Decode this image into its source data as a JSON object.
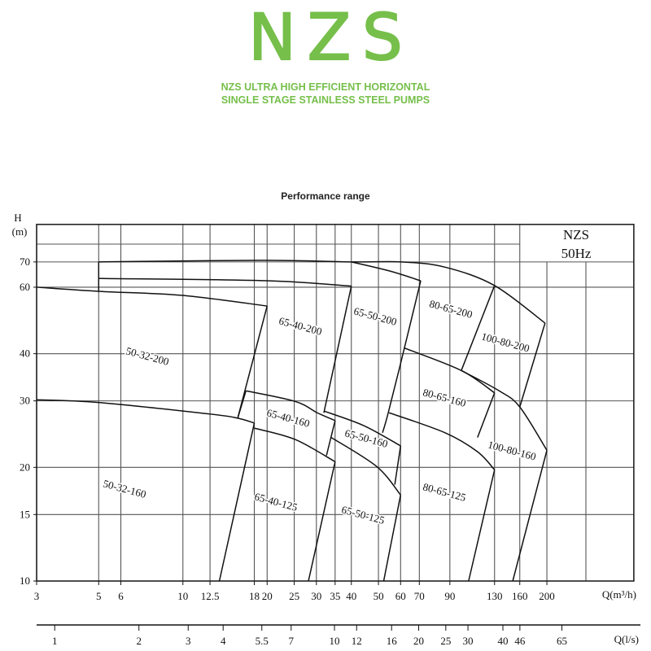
{
  "header": {
    "brand": "NZS",
    "subtitle_line1": "NZS ULTRA HIGH EFFICIENT HORIZONTAL",
    "subtitle_line2": "SINGLE STAGE STAINLESS STEEL PUMPS",
    "brand_color": "#76bf4b"
  },
  "chart_data": {
    "type": "line",
    "title": "Performance range",
    "xlabel": "Q(m³/h)",
    "x2label": "Q(l/s)",
    "ylabel": "H",
    "ylabel_unit": "(m)",
    "x_scale": "log",
    "y_scale": "log",
    "xlim": [
      3,
      409
    ],
    "ylim": [
      10,
      88
    ],
    "grid": true,
    "legend_box": {
      "line1": "NZS",
      "line2": "50Hz",
      "placement": "top-right"
    },
    "x_ticks": [
      3,
      5,
      6,
      10,
      12.5,
      18,
      20,
      25,
      30,
      35,
      40,
      50,
      60,
      70,
      90,
      130,
      160,
      200
    ],
    "x_tick_labels": [
      "3",
      "5",
      "6",
      "10",
      "12.5",
      "18",
      "20",
      "25",
      "30",
      "35",
      "40",
      "50",
      "60",
      "70",
      "90",
      "130",
      "160",
      "200"
    ],
    "x2_ticks": [
      1,
      2,
      3,
      4,
      5.5,
      7,
      10,
      12,
      16,
      20,
      25,
      30,
      40,
      46,
      65
    ],
    "x2_tick_labels": [
      "1",
      "2",
      "3",
      "4",
      "5.5",
      "7",
      "10",
      "12",
      "16",
      "20",
      "25",
      "30",
      "40",
      "46",
      "65"
    ],
    "y_ticks": [
      10,
      15,
      20,
      30,
      40,
      60,
      70
    ],
    "y_tick_labels": [
      "10",
      "15",
      "20",
      "30",
      "40",
      "60",
      "70"
    ],
    "regions": [
      "50-32-200",
      "65-40-200",
      "65-50-200",
      "80-65-200",
      "100-80-200",
      "50-32-160",
      "65-40-160",
      "65-50-160",
      "80-65-160",
      "100-80-160",
      "65-40-125",
      "65-50-125",
      "80-65-125"
    ],
    "boundary_lines": [
      [
        [
          5,
          70
        ],
        [
          19.3,
          70.7
        ],
        [
          40,
          70
        ],
        [
          60.4,
          70
        ],
        [
          86.5,
          67.8
        ],
        [
          130,
          60.6
        ],
        [
          197,
          48.2
        ]
      ],
      [
        [
          40,
          70
        ],
        [
          55,
          66.2
        ],
        [
          70.8,
          62.4
        ]
      ],
      [
        [
          5,
          70
        ],
        [
          5,
          58.5
        ]
      ],
      [
        [
          5,
          63.3
        ],
        [
          20,
          62.4
        ],
        [
          40,
          60.4
        ]
      ],
      [
        [
          3,
          60
        ],
        [
          5,
          58.5
        ],
        [
          9.87,
          57.1
        ],
        [
          20,
          53.5
        ]
      ],
      [
        [
          20,
          53.5
        ],
        [
          15.7,
          27.0
        ]
      ],
      [
        [
          40,
          60.4
        ],
        [
          31.9,
          27.9
        ]
      ],
      [
        [
          3,
          30.2
        ],
        [
          5,
          29.7
        ],
        [
          12.4,
          27.7
        ],
        [
          15.7,
          27.0
        ],
        [
          18,
          26.2
        ]
      ],
      [
        [
          18,
          26.2
        ],
        [
          13.5,
          10
        ]
      ],
      [
        [
          18,
          25.4
        ],
        [
          25.2,
          23.7
        ],
        [
          35,
          20.7
        ]
      ],
      [
        [
          35,
          20.7
        ],
        [
          28.1,
          10
        ]
      ],
      [
        [
          16.8,
          31.9
        ],
        [
          25.2,
          29.9
        ],
        [
          30.2,
          27.9
        ],
        [
          35,
          26.6
        ]
      ],
      [
        [
          35,
          26.6
        ],
        [
          32.6,
          21.5
        ]
      ],
      [
        [
          16.8,
          31.9
        ],
        [
          15.7,
          27.0
        ]
      ],
      [
        [
          31.9,
          28.2
        ],
        [
          44.3,
          25.8
        ],
        [
          60,
          22.8
        ]
      ],
      [
        [
          60,
          22.8
        ],
        [
          57.2,
          18.0
        ]
      ],
      [
        [
          33.9,
          24.0
        ],
        [
          49.3,
          20.1
        ],
        [
          60,
          16.9
        ]
      ],
      [
        [
          60,
          16.9
        ],
        [
          52.2,
          10
        ]
      ],
      [
        [
          70.8,
          62.4
        ],
        [
          61.9,
          41.4
        ],
        [
          54.2,
          27.9
        ],
        [
          51.7,
          24.7
        ]
      ],
      [
        [
          61.9,
          41.4
        ],
        [
          98.9,
          36.1
        ],
        [
          130,
          31.5
        ]
      ],
      [
        [
          130,
          31.5
        ],
        [
          113,
          24.0
        ]
      ],
      [
        [
          130,
          60.6
        ],
        [
          98.9,
          36.1
        ]
      ],
      [
        [
          98.9,
          36.1
        ],
        [
          135,
          31.9
        ],
        [
          160,
          28.9
        ],
        [
          200,
          22.2
        ]
      ],
      [
        [
          197,
          48.2
        ],
        [
          160,
          28.9
        ]
      ],
      [
        [
          200,
          22.2
        ],
        [
          151,
          10
        ]
      ],
      [
        [
          54.6,
          27.9
        ],
        [
          86.5,
          24.7
        ],
        [
          113,
          22.0
        ],
        [
          130,
          19.7
        ]
      ],
      [
        [
          130,
          19.7
        ],
        [
          105,
          10
        ]
      ]
    ]
  }
}
